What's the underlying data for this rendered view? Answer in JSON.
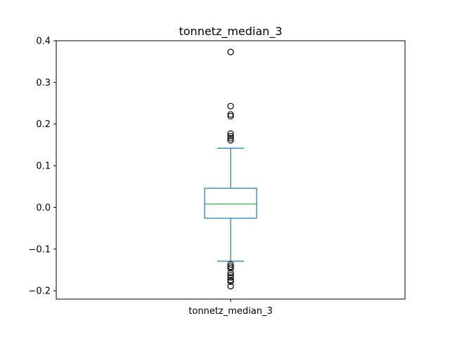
{
  "chart_data": {
    "type": "box",
    "title": "tonnetz_median_3",
    "xlabel": "",
    "ylabel": "",
    "categories": [
      "tonnetz_median_3"
    ],
    "ylim": [
      -0.22,
      0.4
    ],
    "yticks": [
      -0.2,
      -0.1,
      0.0,
      0.1,
      0.2,
      0.3,
      0.4
    ],
    "ytick_labels": [
      "−0.2",
      "−0.1",
      "0.0",
      "0.1",
      "0.2",
      "0.3",
      "0.4"
    ],
    "grid": false,
    "box": {
      "q1": -0.026,
      "median": 0.008,
      "q3": 0.046,
      "whisker_low": -0.129,
      "whisker_high": 0.142
    },
    "outliers": [
      0.373,
      0.243,
      0.223,
      0.219,
      0.177,
      0.171,
      0.166,
      0.161,
      -0.137,
      -0.142,
      -0.146,
      -0.157,
      -0.163,
      -0.168,
      -0.174,
      -0.178,
      -0.189
    ],
    "colors": {
      "box": "#1f77b4",
      "median": "#2ca02c",
      "outlier": "#000000"
    }
  }
}
